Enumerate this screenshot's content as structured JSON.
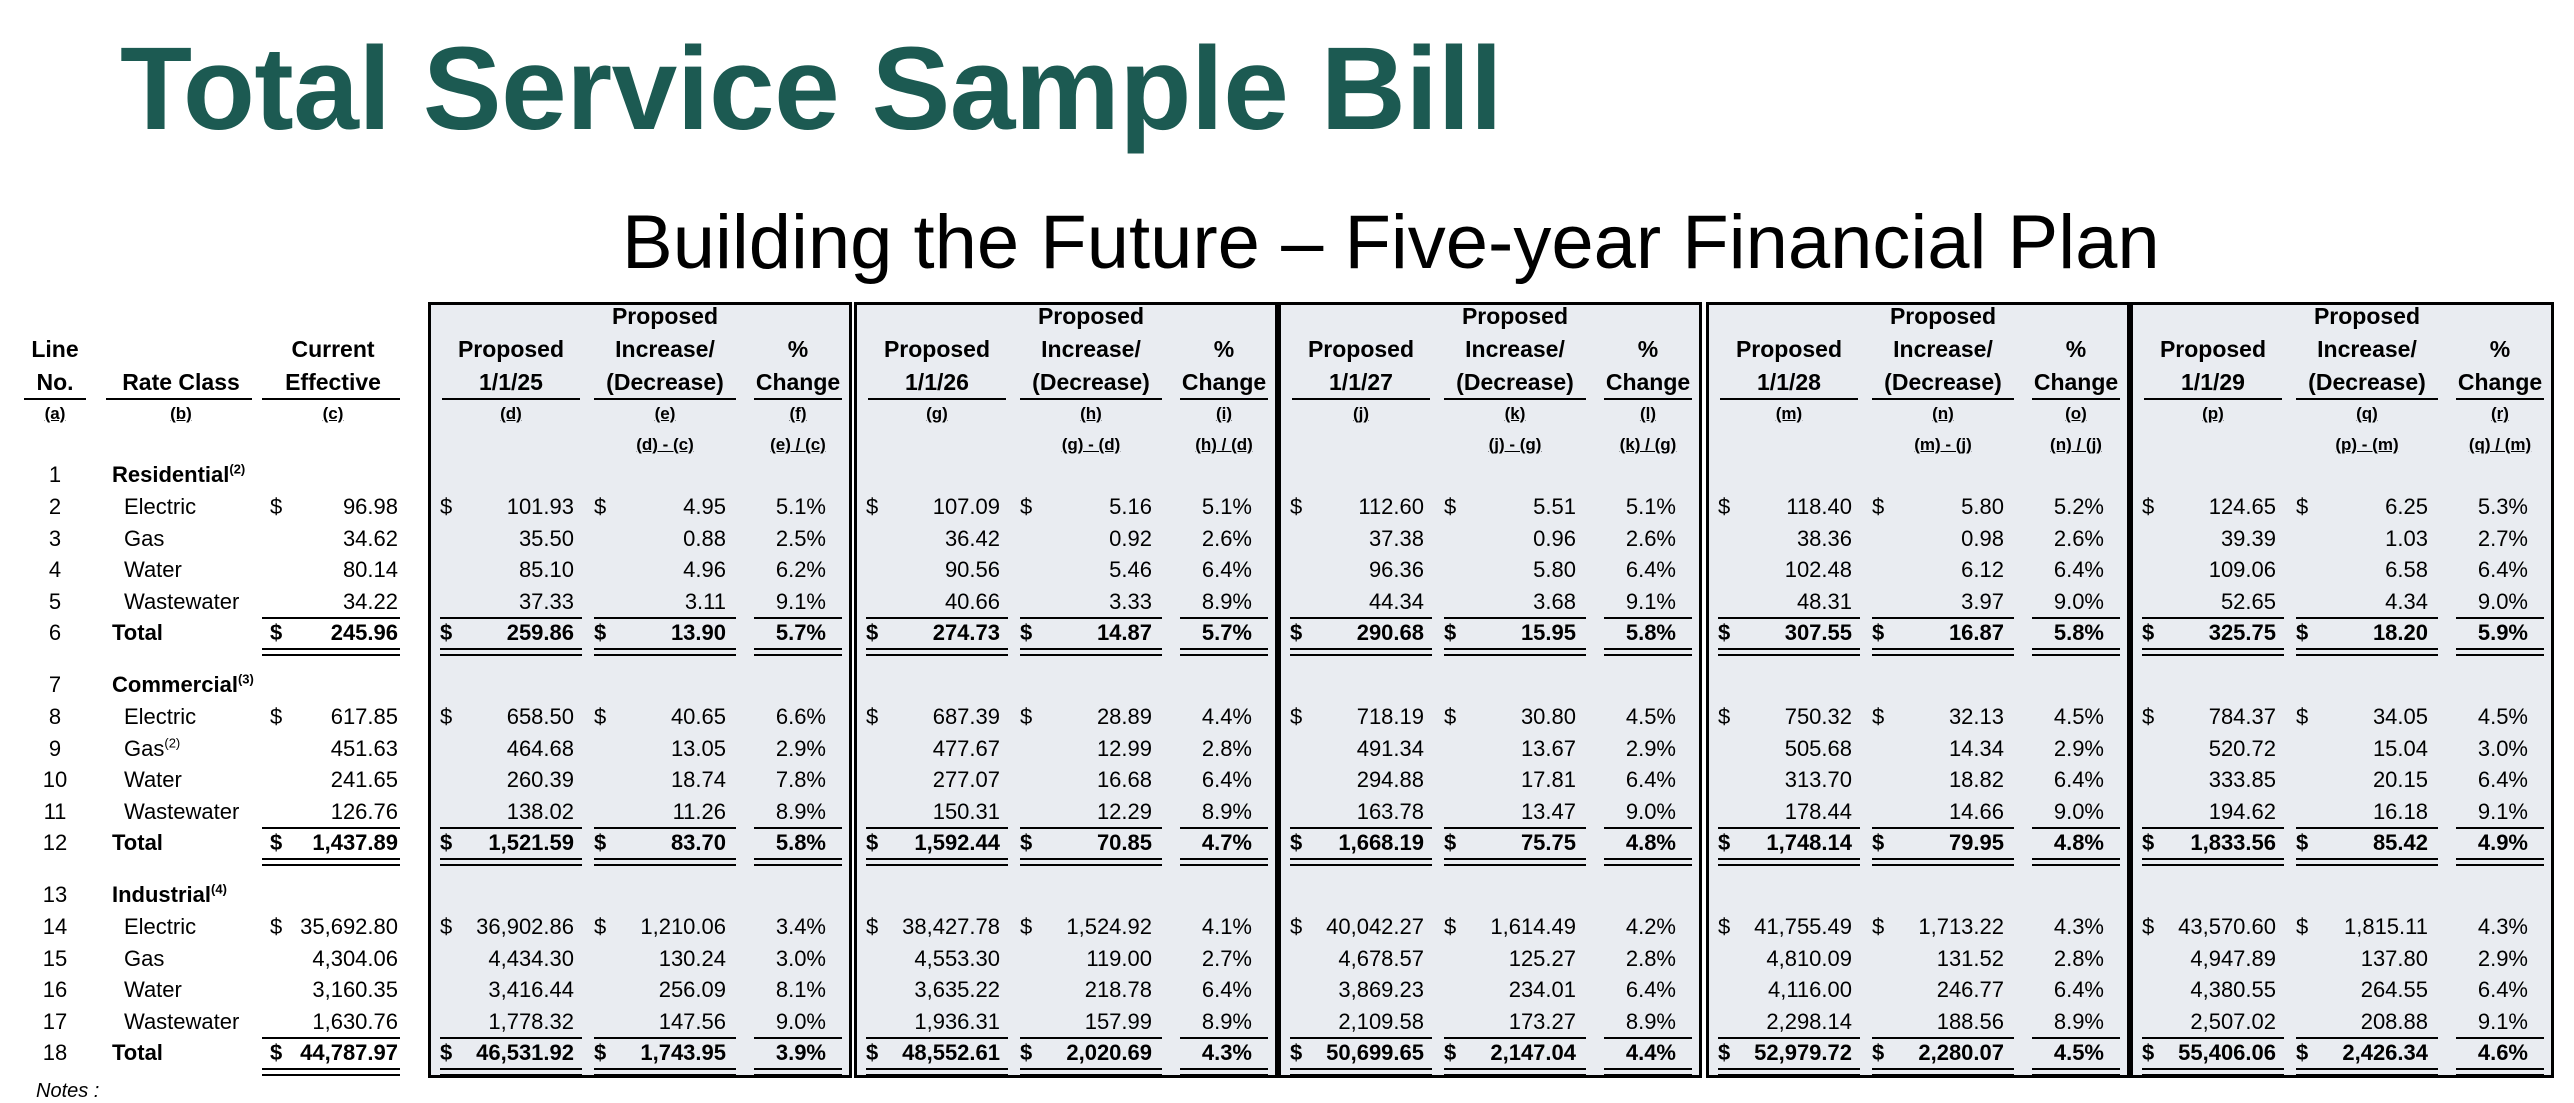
{
  "title": "Total Service Sample Bill",
  "subtitle": "Building the Future – Five-year Financial Plan",
  "notes_label": "Notes :",
  "headers": {
    "line_no": [
      "Line",
      "No."
    ],
    "rate_class": "Rate Class",
    "current_effective": [
      "Current",
      "Effective"
    ],
    "groups": [
      {
        "proposed": [
          "Proposed",
          "1/1/25"
        ],
        "increase": [
          "Proposed",
          "Increase/",
          "(Decrease)"
        ],
        "change": [
          "%",
          "Change"
        ]
      },
      {
        "proposed": [
          "Proposed",
          "1/1/26"
        ],
        "increase": [
          "Proposed",
          "Increase/",
          "(Decrease)"
        ],
        "change": [
          "%",
          "Change"
        ]
      },
      {
        "proposed": [
          "Proposed",
          "1/1/27"
        ],
        "increase": [
          "Proposed",
          "Increase/",
          "(Decrease)"
        ],
        "change": [
          "%",
          "Change"
        ]
      },
      {
        "proposed": [
          "Proposed",
          "1/1/28"
        ],
        "increase": [
          "Proposed",
          "Increase/",
          "(Decrease)"
        ],
        "change": [
          "%",
          "Change"
        ]
      },
      {
        "proposed": [
          "Proposed",
          "1/1/29"
        ],
        "increase": [
          "Proposed",
          "Increase/",
          "(Decrease)"
        ],
        "change": [
          "%",
          "Change"
        ]
      }
    ]
  },
  "column_letters": [
    "(a)",
    "(b)",
    "(c)",
    "(d)",
    "(e)",
    "(f)",
    "(g)",
    "(h)",
    "(i)",
    "(j)",
    "(k)",
    "(l)",
    "(m)",
    "(n)",
    "(o)",
    "(p)",
    "(q)",
    "(r)"
  ],
  "formulas": [
    "(d) - (c)",
    "(e) / (c)",
    "(g) - (d)",
    "(h) / (d)",
    "(j) - (g)",
    "(k) / (g)",
    "(m) - (j)",
    "(n) / (j)",
    "(p) - (m)",
    "(q) / (m)"
  ],
  "sections": [
    {
      "line": "1",
      "name": "Residential",
      "sup": "(2)",
      "rows": [
        {
          "line": "2",
          "label": "Electric",
          "sup": "",
          "dollar": true,
          "current": "96.98",
          "groups": [
            [
              "101.93",
              "4.95",
              "5.1%"
            ],
            [
              "107.09",
              "5.16",
              "5.1%"
            ],
            [
              "112.60",
              "5.51",
              "5.1%"
            ],
            [
              "118.40",
              "5.80",
              "5.2%"
            ],
            [
              "124.65",
              "6.25",
              "5.3%"
            ]
          ]
        },
        {
          "line": "3",
          "label": "Gas",
          "sup": "",
          "dollar": false,
          "current": "34.62",
          "groups": [
            [
              "35.50",
              "0.88",
              "2.5%"
            ],
            [
              "36.42",
              "0.92",
              "2.6%"
            ],
            [
              "37.38",
              "0.96",
              "2.6%"
            ],
            [
              "38.36",
              "0.98",
              "2.6%"
            ],
            [
              "39.39",
              "1.03",
              "2.7%"
            ]
          ]
        },
        {
          "line": "4",
          "label": "Water",
          "sup": "",
          "dollar": false,
          "current": "80.14",
          "groups": [
            [
              "85.10",
              "4.96",
              "6.2%"
            ],
            [
              "90.56",
              "5.46",
              "6.4%"
            ],
            [
              "96.36",
              "5.80",
              "6.4%"
            ],
            [
              "102.48",
              "6.12",
              "6.4%"
            ],
            [
              "109.06",
              "6.58",
              "6.4%"
            ]
          ]
        },
        {
          "line": "5",
          "label": "Wastewater",
          "sup": "",
          "dollar": false,
          "current": "34.22",
          "groups": [
            [
              "37.33",
              "3.11",
              "9.1%"
            ],
            [
              "40.66",
              "3.33",
              "8.9%"
            ],
            [
              "44.34",
              "3.68",
              "9.1%"
            ],
            [
              "48.31",
              "3.97",
              "9.0%"
            ],
            [
              "52.65",
              "4.34",
              "9.0%"
            ]
          ]
        }
      ],
      "total": {
        "line": "6",
        "label": "Total",
        "current": "245.96",
        "groups": [
          [
            "259.86",
            "13.90",
            "5.7%"
          ],
          [
            "274.73",
            "14.87",
            "5.7%"
          ],
          [
            "290.68",
            "15.95",
            "5.8%"
          ],
          [
            "307.55",
            "16.87",
            "5.8%"
          ],
          [
            "325.75",
            "18.20",
            "5.9%"
          ]
        ]
      }
    },
    {
      "line": "7",
      "name": "Commercial",
      "sup": "(3)",
      "rows": [
        {
          "line": "8",
          "label": "Electric",
          "sup": "",
          "dollar": true,
          "current": "617.85",
          "groups": [
            [
              "658.50",
              "40.65",
              "6.6%"
            ],
            [
              "687.39",
              "28.89",
              "4.4%"
            ],
            [
              "718.19",
              "30.80",
              "4.5%"
            ],
            [
              "750.32",
              "32.13",
              "4.5%"
            ],
            [
              "784.37",
              "34.05",
              "4.5%"
            ]
          ]
        },
        {
          "line": "9",
          "label": "Gas",
          "sup": "(2)",
          "dollar": false,
          "current": "451.63",
          "groups": [
            [
              "464.68",
              "13.05",
              "2.9%"
            ],
            [
              "477.67",
              "12.99",
              "2.8%"
            ],
            [
              "491.34",
              "13.67",
              "2.9%"
            ],
            [
              "505.68",
              "14.34",
              "2.9%"
            ],
            [
              "520.72",
              "15.04",
              "3.0%"
            ]
          ]
        },
        {
          "line": "10",
          "label": "Water",
          "sup": "",
          "dollar": false,
          "current": "241.65",
          "groups": [
            [
              "260.39",
              "18.74",
              "7.8%"
            ],
            [
              "277.07",
              "16.68",
              "6.4%"
            ],
            [
              "294.88",
              "17.81",
              "6.4%"
            ],
            [
              "313.70",
              "18.82",
              "6.4%"
            ],
            [
              "333.85",
              "20.15",
              "6.4%"
            ]
          ]
        },
        {
          "line": "11",
          "label": "Wastewater",
          "sup": "",
          "dollar": false,
          "current": "126.76",
          "groups": [
            [
              "138.02",
              "11.26",
              "8.9%"
            ],
            [
              "150.31",
              "12.29",
              "8.9%"
            ],
            [
              "163.78",
              "13.47",
              "9.0%"
            ],
            [
              "178.44",
              "14.66",
              "9.0%"
            ],
            [
              "194.62",
              "16.18",
              "9.1%"
            ]
          ]
        }
      ],
      "total": {
        "line": "12",
        "label": "Total",
        "current": "1,437.89",
        "groups": [
          [
            "1,521.59",
            "83.70",
            "5.8%"
          ],
          [
            "1,592.44",
            "70.85",
            "4.7%"
          ],
          [
            "1,668.19",
            "75.75",
            "4.8%"
          ],
          [
            "1,748.14",
            "79.95",
            "4.8%"
          ],
          [
            "1,833.56",
            "85.42",
            "4.9%"
          ]
        ]
      }
    },
    {
      "line": "13",
      "name": "Industrial",
      "sup": "(4)",
      "rows": [
        {
          "line": "14",
          "label": "Electric",
          "sup": "",
          "dollar": true,
          "current": "35,692.80",
          "groups": [
            [
              "36,902.86",
              "1,210.06",
              "3.4%"
            ],
            [
              "38,427.78",
              "1,524.92",
              "4.1%"
            ],
            [
              "40,042.27",
              "1,614.49",
              "4.2%"
            ],
            [
              "41,755.49",
              "1,713.22",
              "4.3%"
            ],
            [
              "43,570.60",
              "1,815.11",
              "4.3%"
            ]
          ]
        },
        {
          "line": "15",
          "label": "Gas",
          "sup": "",
          "dollar": false,
          "current": "4,304.06",
          "groups": [
            [
              "4,434.30",
              "130.24",
              "3.0%"
            ],
            [
              "4,553.30",
              "119.00",
              "2.7%"
            ],
            [
              "4,678.57",
              "125.27",
              "2.8%"
            ],
            [
              "4,810.09",
              "131.52",
              "2.8%"
            ],
            [
              "4,947.89",
              "137.80",
              "2.9%"
            ]
          ]
        },
        {
          "line": "16",
          "label": "Water",
          "sup": "",
          "dollar": false,
          "current": "3,160.35",
          "groups": [
            [
              "3,416.44",
              "256.09",
              "8.1%"
            ],
            [
              "3,635.22",
              "218.78",
              "6.4%"
            ],
            [
              "3,869.23",
              "234.01",
              "6.4%"
            ],
            [
              "4,116.00",
              "246.77",
              "6.4%"
            ],
            [
              "4,380.55",
              "264.55",
              "6.4%"
            ]
          ]
        },
        {
          "line": "17",
          "label": "Wastewater",
          "sup": "",
          "dollar": false,
          "current": "1,630.76",
          "groups": [
            [
              "1,778.32",
              "147.56",
              "9.0%"
            ],
            [
              "1,936.31",
              "157.99",
              "8.9%"
            ],
            [
              "2,109.58",
              "173.27",
              "8.9%"
            ],
            [
              "2,298.14",
              "188.56",
              "8.9%"
            ],
            [
              "2,507.02",
              "208.88",
              "9.1%"
            ]
          ]
        }
      ],
      "total": {
        "line": "18",
        "label": "Total",
        "current": "44,787.97",
        "groups": [
          [
            "46,531.92",
            "1,743.95",
            "3.9%"
          ],
          [
            "48,552.61",
            "2,020.69",
            "4.3%"
          ],
          [
            "50,699.65",
            "2,147.04",
            "4.4%"
          ],
          [
            "52,979.72",
            "2,280.07",
            "4.5%"
          ],
          [
            "55,406.06",
            "2,426.34",
            "4.6%"
          ]
        ]
      }
    }
  ]
}
